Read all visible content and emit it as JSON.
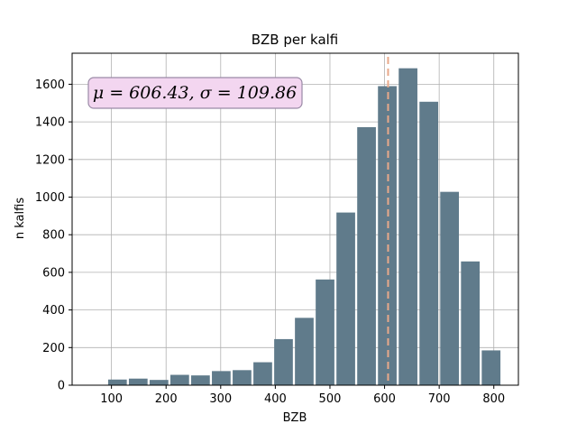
{
  "chart_data": {
    "type": "bar",
    "title": "BZB per kalfi",
    "xlabel": "BZB",
    "ylabel": "n kalfis",
    "xlim": [
      28,
      845
    ],
    "ylim": [
      0,
      1765
    ],
    "x_ticks": [
      100,
      200,
      300,
      400,
      500,
      600,
      700,
      800
    ],
    "y_ticks": [
      0,
      200,
      400,
      600,
      800,
      1000,
      1200,
      1400,
      1600
    ],
    "grid": true,
    "bin_edges": [
      92,
      130,
      168,
      206,
      244,
      282,
      320,
      358,
      396,
      434,
      472,
      510,
      548,
      586,
      624,
      662,
      700,
      738,
      776,
      814
    ],
    "values": [
      30,
      35,
      28,
      55,
      52,
      75,
      80,
      122,
      245,
      358,
      562,
      918,
      1372,
      1590,
      1685,
      1507,
      1028,
      658,
      185
    ],
    "bar_color": "#607b8b",
    "mean_line": {
      "x": 606.43,
      "color": "#e9a98a"
    },
    "stats_annotation": {
      "text": "μ = 606.43,  σ = 109.86",
      "box_fill": "#f3d6f0",
      "box_edge": "#9a8aa6"
    }
  }
}
